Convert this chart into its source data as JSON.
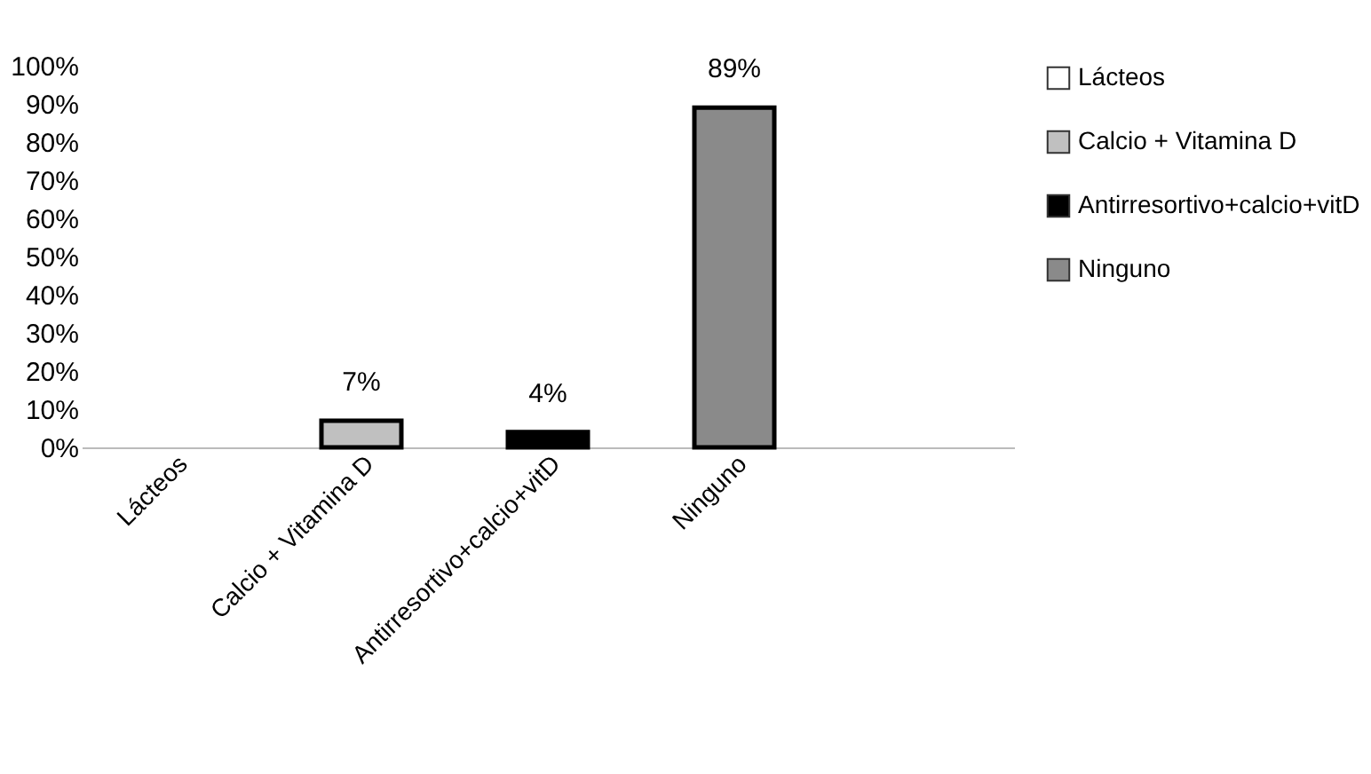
{
  "chart_data": {
    "type": "bar",
    "categories": [
      "Lácteos",
      "Calcio + Vitamina D",
      "Antirresortivo+calcio+vitD",
      "Ninguno",
      null
    ],
    "series": [
      {
        "name": "Lácteos",
        "color": "#ffffff",
        "values": [
          0,
          null,
          null,
          null,
          null
        ]
      },
      {
        "name": "Calcio + Vitamina D",
        "color": "#c0c0c0",
        "values": [
          null,
          7,
          null,
          null,
          null
        ],
        "value_labels": [
          null,
          "7%",
          null,
          null,
          null
        ]
      },
      {
        "name": "Antirresortivo+calcio+vitD",
        "color": "#000000",
        "values": [
          null,
          null,
          4,
          null,
          null
        ],
        "value_labels": [
          null,
          null,
          "4%",
          null,
          null
        ]
      },
      {
        "name": "Ninguno",
        "color": "#8a8a8a",
        "values": [
          null,
          null,
          null,
          89,
          null
        ],
        "value_labels": [
          null,
          null,
          null,
          "89%",
          null
        ]
      }
    ],
    "ylim": [
      0,
      100
    ],
    "yticks": [
      {
        "value": 0,
        "label": "0%"
      },
      {
        "value": 10,
        "label": "10%"
      },
      {
        "value": 20,
        "label": "20%"
      },
      {
        "value": 30,
        "label": "30%"
      },
      {
        "value": 40,
        "label": "40%"
      },
      {
        "value": 50,
        "label": "50%"
      },
      {
        "value": 60,
        "label": "60%"
      },
      {
        "value": 70,
        "label": "70%"
      },
      {
        "value": 80,
        "label": "80%"
      },
      {
        "value": 90,
        "label": "90%"
      },
      {
        "value": 100,
        "label": "100%"
      }
    ],
    "grid": false,
    "legend": "right"
  }
}
